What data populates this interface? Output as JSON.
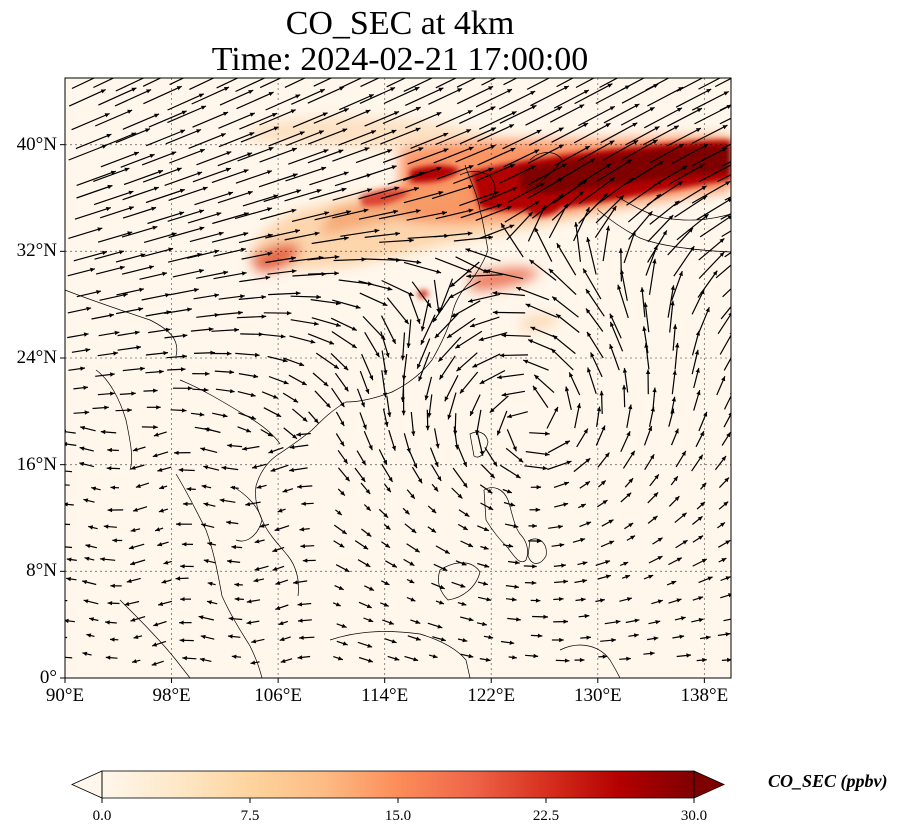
{
  "title": {
    "line1": "CO_SEC at 4km",
    "line2": "Time: 2024-02-21 17:00:00"
  },
  "map": {
    "lon_range": [
      90,
      140
    ],
    "lat_range": [
      0,
      45
    ],
    "lat_ticks": [
      {
        "value": 40,
        "label": "40°N"
      },
      {
        "value": 32,
        "label": "32°N"
      },
      {
        "value": 24,
        "label": "24°N"
      },
      {
        "value": 16,
        "label": "16°N"
      },
      {
        "value": 8,
        "label": "8°N"
      },
      {
        "value": 0,
        "label": "0°"
      }
    ],
    "lon_ticks": [
      {
        "value": 90,
        "label": "90°E"
      },
      {
        "value": 98,
        "label": "98°E"
      },
      {
        "value": 106,
        "label": "106°E"
      },
      {
        "value": 114,
        "label": "114°E"
      },
      {
        "value": 122,
        "label": "122°E"
      },
      {
        "value": 130,
        "label": "130°E"
      },
      {
        "value": 138,
        "label": "138°E"
      }
    ],
    "gridlines": true,
    "features": "coastlines, country borders, wind vectors",
    "plume_color": "#7f0000"
  },
  "colorbar": {
    "label": "CO_SEC (ppbv)",
    "ticks": [
      "0.0",
      "7.5",
      "15.0",
      "22.5",
      "30.0"
    ],
    "range": [
      0,
      30
    ],
    "extend": "both",
    "colormap": "OrRd",
    "colors": [
      "#fff7ec",
      "#fee8c8",
      "#fdd49e",
      "#fdbb84",
      "#fc8d59",
      "#ef6548",
      "#d7301f",
      "#b30000",
      "#7f0000"
    ]
  }
}
